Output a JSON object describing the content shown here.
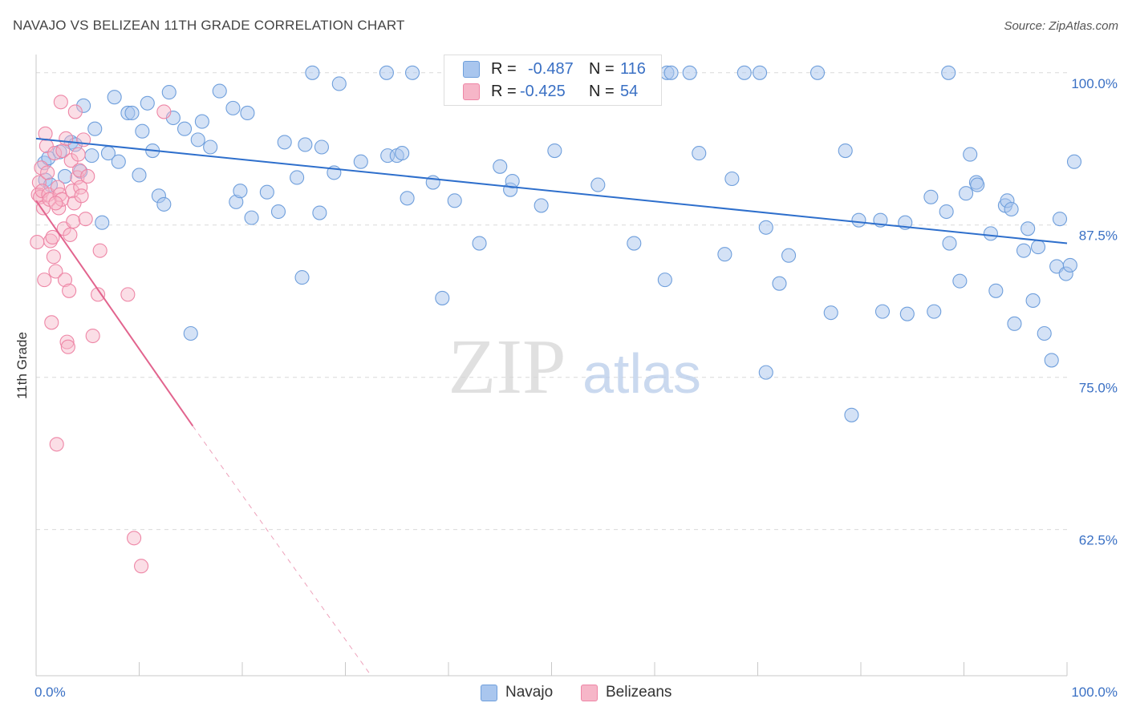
{
  "title": "NAVAJO VS BELIZEAN 11TH GRADE CORRELATION CHART",
  "source": "Source: ZipAtlas.com",
  "watermark": {
    "zip": "ZIP",
    "atlas": "atlas"
  },
  "legend": {
    "rows": [
      {
        "r_label": "R =",
        "r_value": "-0.487",
        "n_label": "N =",
        "n_value": "116"
      },
      {
        "r_label": "R =",
        "r_value": "-0.425",
        "n_label": "N =",
        "n_value": "54"
      }
    ]
  },
  "bottom_legend": {
    "navajo": "Navajo",
    "belizeans": "Belizeans"
  },
  "colors": {
    "navajo_fill": "#a9c6ee",
    "navajo_stroke": "#6f9fdc",
    "navajo_line": "#2e6fcc",
    "belizean_fill": "#f6b6c8",
    "belizean_stroke": "#ee86a6",
    "belizean_line": "#e2648e",
    "axis_label": "#3a70c4",
    "grid": "#d9d9d9"
  },
  "chart_data": {
    "type": "scatter",
    "title": "NAVAJO VS BELIZEAN 11TH GRADE CORRELATION CHART",
    "xlabel": "",
    "ylabel": "11th Grade",
    "xlim": [
      0,
      100
    ],
    "ylim": [
      50.5,
      101.5
    ],
    "x_tick_labels": [
      {
        "value": 0,
        "label": "0.0%"
      },
      {
        "value": 100,
        "label": "100.0%"
      }
    ],
    "y_ticks": [
      {
        "value": 100,
        "label": "100.0%"
      },
      {
        "value": 87.5,
        "label": "87.5%"
      },
      {
        "value": 75,
        "label": "75.0%"
      },
      {
        "value": 62.5,
        "label": "62.5%"
      }
    ],
    "series": [
      {
        "name": "Navajo",
        "r": -0.487,
        "n": 116,
        "trend": {
          "x": [
            0,
            100
          ],
          "y": [
            94.6,
            86.0
          ],
          "dashed_from": null
        },
        "points": [
          [
            0.8,
            92.6
          ],
          [
            0.9,
            91.2
          ],
          [
            1.2,
            93.0
          ],
          [
            1.4,
            90.8
          ],
          [
            2.3,
            93.5
          ],
          [
            2.8,
            91.5
          ],
          [
            3.4,
            94.3
          ],
          [
            3.8,
            94.1
          ],
          [
            4.3,
            91.9
          ],
          [
            4.6,
            97.3
          ],
          [
            5.4,
            93.2
          ],
          [
            5.7,
            95.4
          ],
          [
            6.4,
            87.7
          ],
          [
            7.0,
            93.4
          ],
          [
            7.6,
            98.0
          ],
          [
            8.0,
            92.7
          ],
          [
            8.9,
            96.7
          ],
          [
            9.3,
            96.7
          ],
          [
            10.0,
            91.6
          ],
          [
            10.3,
            95.2
          ],
          [
            10.8,
            97.5
          ],
          [
            11.3,
            93.6
          ],
          [
            11.9,
            89.9
          ],
          [
            12.4,
            89.2
          ],
          [
            12.9,
            98.4
          ],
          [
            13.3,
            96.3
          ],
          [
            14.4,
            95.4
          ],
          [
            15.0,
            78.6
          ],
          [
            15.7,
            94.5
          ],
          [
            16.1,
            96.0
          ],
          [
            16.9,
            93.9
          ],
          [
            17.8,
            98.5
          ],
          [
            19.1,
            97.1
          ],
          [
            19.4,
            89.4
          ],
          [
            19.8,
            90.3
          ],
          [
            20.5,
            96.7
          ],
          [
            20.9,
            88.1
          ],
          [
            22.4,
            90.2
          ],
          [
            23.5,
            88.6
          ],
          [
            24.1,
            94.3
          ],
          [
            25.3,
            91.4
          ],
          [
            25.8,
            83.2
          ],
          [
            26.1,
            94.1
          ],
          [
            26.8,
            100.0
          ],
          [
            27.5,
            88.5
          ],
          [
            27.7,
            93.9
          ],
          [
            28.9,
            91.8
          ],
          [
            29.4,
            99.1
          ],
          [
            31.5,
            92.7
          ],
          [
            34.0,
            100.0
          ],
          [
            34.1,
            93.2
          ],
          [
            35.0,
            93.2
          ],
          [
            35.5,
            93.4
          ],
          [
            36.0,
            89.7
          ],
          [
            36.5,
            100.0
          ],
          [
            38.5,
            91.0
          ],
          [
            39.4,
            81.5
          ],
          [
            40.6,
            89.5
          ],
          [
            43.0,
            86.0
          ],
          [
            45.0,
            92.3
          ],
          [
            46.0,
            90.4
          ],
          [
            46.2,
            91.1
          ],
          [
            49.0,
            89.1
          ],
          [
            50.3,
            93.6
          ],
          [
            52.4,
            100.0
          ],
          [
            54.5,
            90.8
          ],
          [
            58.0,
            86.0
          ],
          [
            61.0,
            83.0
          ],
          [
            61.2,
            100.0
          ],
          [
            61.6,
            100.0
          ],
          [
            63.4,
            100.0
          ],
          [
            64.3,
            93.4
          ],
          [
            66.8,
            85.1
          ],
          [
            67.5,
            91.3
          ],
          [
            68.7,
            100.0
          ],
          [
            70.2,
            100.0
          ],
          [
            70.8,
            75.4
          ],
          [
            70.8,
            87.3
          ],
          [
            72.1,
            82.7
          ],
          [
            73.0,
            85.0
          ],
          [
            75.8,
            100.0
          ],
          [
            77.1,
            80.3
          ],
          [
            78.5,
            93.6
          ],
          [
            79.1,
            71.9
          ],
          [
            79.8,
            87.9
          ],
          [
            81.9,
            87.9
          ],
          [
            82.1,
            80.4
          ],
          [
            84.3,
            87.7
          ],
          [
            84.5,
            80.2
          ],
          [
            86.8,
            89.8
          ],
          [
            87.1,
            80.4
          ],
          [
            88.3,
            88.6
          ],
          [
            88.5,
            100.0
          ],
          [
            88.6,
            86.0
          ],
          [
            89.6,
            82.9
          ],
          [
            90.2,
            90.1
          ],
          [
            90.6,
            93.3
          ],
          [
            91.2,
            91.0
          ],
          [
            91.3,
            90.8
          ],
          [
            92.6,
            86.8
          ],
          [
            93.1,
            82.1
          ],
          [
            94.0,
            89.1
          ],
          [
            94.2,
            89.5
          ],
          [
            94.6,
            88.8
          ],
          [
            94.9,
            79.4
          ],
          [
            95.8,
            85.4
          ],
          [
            96.2,
            87.2
          ],
          [
            96.7,
            81.3
          ],
          [
            97.2,
            85.7
          ],
          [
            97.8,
            78.6
          ],
          [
            98.5,
            76.4
          ],
          [
            99.0,
            84.1
          ],
          [
            99.3,
            88.0
          ],
          [
            99.9,
            83.5
          ],
          [
            100.3,
            84.2
          ],
          [
            100.7,
            92.7
          ]
        ]
      },
      {
        "name": "Belizeans",
        "r": -0.425,
        "n": 54,
        "trend": {
          "x": [
            0,
            15.2
          ],
          "y": [
            89.5,
            71.0
          ],
          "dashed_to": {
            "x": 32.5,
            "y": 50.5
          }
        },
        "points": [
          [
            0.1,
            86.1
          ],
          [
            0.2,
            90.0
          ],
          [
            0.3,
            91.0
          ],
          [
            0.4,
            89.8
          ],
          [
            0.5,
            92.2
          ],
          [
            0.6,
            90.3
          ],
          [
            0.7,
            88.9
          ],
          [
            0.8,
            83.0
          ],
          [
            0.9,
            95.0
          ],
          [
            1.0,
            94.0
          ],
          [
            1.1,
            91.8
          ],
          [
            1.2,
            90.0
          ],
          [
            1.3,
            89.6
          ],
          [
            1.4,
            86.2
          ],
          [
            1.5,
            79.5
          ],
          [
            1.6,
            86.5
          ],
          [
            1.7,
            84.9
          ],
          [
            1.8,
            93.4
          ],
          [
            1.9,
            83.7
          ],
          [
            2.0,
            69.5
          ],
          [
            2.1,
            90.6
          ],
          [
            2.2,
            88.9
          ],
          [
            2.3,
            90.0
          ],
          [
            2.4,
            97.6
          ],
          [
            2.5,
            89.6
          ],
          [
            2.6,
            93.6
          ],
          [
            2.7,
            87.2
          ],
          [
            2.8,
            83.0
          ],
          [
            2.9,
            94.6
          ],
          [
            3.0,
            77.9
          ],
          [
            3.1,
            77.5
          ],
          [
            3.2,
            82.1
          ],
          [
            3.3,
            86.7
          ],
          [
            3.4,
            92.8
          ],
          [
            3.5,
            90.3
          ],
          [
            3.6,
            87.8
          ],
          [
            3.7,
            89.3
          ],
          [
            3.8,
            96.8
          ],
          [
            4.0,
            91.4
          ],
          [
            4.1,
            93.3
          ],
          [
            4.2,
            92.0
          ],
          [
            4.3,
            90.6
          ],
          [
            4.4,
            89.9
          ],
          [
            4.6,
            94.5
          ],
          [
            4.8,
            88.0
          ],
          [
            5.0,
            91.5
          ],
          [
            5.5,
            78.4
          ],
          [
            6.0,
            81.8
          ],
          [
            6.2,
            85.4
          ],
          [
            8.9,
            81.8
          ],
          [
            9.5,
            61.8
          ],
          [
            10.2,
            59.5
          ],
          [
            12.4,
            96.8
          ],
          [
            1.9,
            89.3
          ]
        ]
      }
    ]
  }
}
